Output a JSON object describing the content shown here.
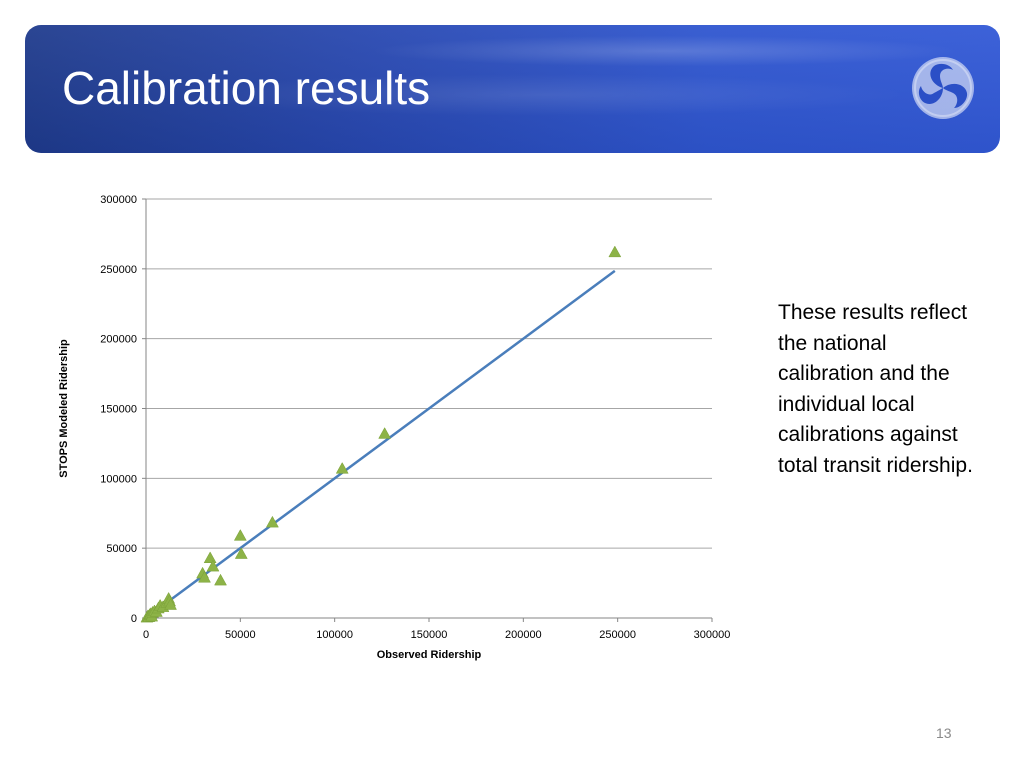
{
  "slide": {
    "title": "Calibration results",
    "side_text": "These results reflect the national calibration and the individual local calibrations against total transit ridership.",
    "page_number": "13",
    "logo": "dot-logo-icon"
  },
  "colors": {
    "header_start": "#1e3a8c",
    "header_end": "#3158d6",
    "marker": "#8db347",
    "fit_line": "#4a7ebb",
    "gridline": "#a6a6a6"
  },
  "chart_data": {
    "type": "scatter",
    "title": "",
    "xlabel": "Observed Ridership",
    "ylabel": "STOPS Modeled Ridership",
    "xlim": [
      0,
      300000
    ],
    "ylim": [
      0,
      300000
    ],
    "x_ticks": [
      0,
      50000,
      100000,
      150000,
      200000,
      250000,
      300000
    ],
    "y_ticks": [
      0,
      50000,
      100000,
      150000,
      200000,
      250000,
      300000
    ],
    "grid": "horizontal",
    "legend": "none",
    "marker": "triangle",
    "series": [
      {
        "points": [
          [
            500,
            500
          ],
          [
            1000,
            1500
          ],
          [
            1500,
            800
          ],
          [
            2000,
            2500
          ],
          [
            2500,
            3000
          ],
          [
            3000,
            1200
          ],
          [
            3500,
            4000
          ],
          [
            4500,
            5000
          ],
          [
            5500,
            4500
          ],
          [
            6500,
            7000
          ],
          [
            7500,
            9000
          ],
          [
            9000,
            8000
          ],
          [
            11000,
            11000
          ],
          [
            12000,
            14000
          ],
          [
            12500,
            12000
          ],
          [
            13000,
            9500
          ],
          [
            30000,
            32000
          ],
          [
            31000,
            29000
          ],
          [
            34000,
            43000
          ],
          [
            35500,
            37000
          ],
          [
            39500,
            27000
          ],
          [
            50000,
            59000
          ],
          [
            50500,
            46000
          ],
          [
            67000,
            68500
          ],
          [
            104000,
            107000
          ],
          [
            126500,
            132000
          ],
          [
            248500,
            262000
          ]
        ]
      }
    ],
    "trendline": {
      "from": [
        0,
        0
      ],
      "to": [
        248500,
        248500
      ]
    }
  }
}
